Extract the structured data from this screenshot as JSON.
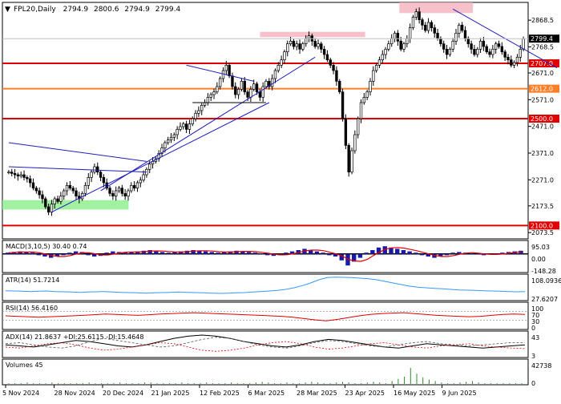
{
  "header": {
    "symbol": "FPL20,",
    "timeframe": "Daily",
    "open": "2794.9",
    "high": "2800.6",
    "low": "2794.9",
    "close": "2799.4"
  },
  "chart_data": {
    "type": "candlestick",
    "y_ticks": [
      "2868.5",
      "2768.5",
      "2671.0",
      "2571.0",
      "2471.0",
      "2371.0",
      "2271.0",
      "2173.5",
      "2073.5"
    ],
    "y_range": [
      2050,
      2935
    ],
    "x_ticks": [
      "5 Nov 2024",
      "28 Nov 2024",
      "20 Dec 2024",
      "21 Jan 2025",
      "12 Feb 2025",
      "6 Mar 2025",
      "28 Mar 2025",
      "23 Apr 2025",
      "16 May 2025",
      "9 Jun 2025"
    ],
    "current_price": "2799.4",
    "levels": [
      {
        "price": 2707.0,
        "label": "2707.0",
        "color": "#e00000"
      },
      {
        "price": 2612.0,
        "label": "2612.0",
        "color": "#ff7f27"
      },
      {
        "price": 2500.0,
        "label": "2500.0",
        "color": "#e00000"
      },
      {
        "price": 2100.0,
        "label": "2100.0",
        "color": "#e00000"
      }
    ],
    "close_series": [
      2300,
      2295,
      2290,
      2285,
      2290,
      2280,
      2275,
      2260,
      2240,
      2230,
      2215,
      2200,
      2170,
      2150,
      2180,
      2200,
      2190,
      2210,
      2230,
      2250,
      2240,
      2230,
      2210,
      2200,
      2220,
      2250,
      2280,
      2300,
      2320,
      2300,
      2280,
      2260,
      2240,
      2220,
      2210,
      2230,
      2240,
      2220,
      2210,
      2230,
      2250,
      2240,
      2260,
      2270,
      2290,
      2310,
      2330,
      2340,
      2350,
      2370,
      2390,
      2410,
      2420,
      2430,
      2440,
      2460,
      2470,
      2480,
      2460,
      2480,
      2500,
      2520,
      2530,
      2550,
      2560,
      2580,
      2590,
      2600,
      2620,
      2650,
      2680,
      2700,
      2660,
      2620,
      2590,
      2610,
      2640,
      2600,
      2580,
      2610,
      2630,
      2600,
      2580,
      2620,
      2640,
      2620,
      2650,
      2680,
      2700,
      2720,
      2750,
      2780,
      2790,
      2770,
      2780,
      2760,
      2780,
      2800,
      2810,
      2790,
      2770,
      2780,
      2760,
      2740,
      2720,
      2700,
      2680,
      2640,
      2600,
      2500,
      2400,
      2300,
      2380,
      2440,
      2500,
      2560,
      2580,
      2600,
      2640,
      2680,
      2700,
      2720,
      2740,
      2760,
      2780,
      2800,
      2820,
      2790,
      2760,
      2780,
      2800,
      2840,
      2880,
      2900,
      2870,
      2850,
      2830,
      2860,
      2840,
      2820,
      2800,
      2780,
      2760,
      2740,
      2760,
      2790,
      2820,
      2850,
      2830,
      2800,
      2780,
      2760,
      2740,
      2760,
      2790,
      2770,
      2750,
      2740,
      2760,
      2780,
      2770,
      2750,
      2730,
      2720,
      2700,
      2710,
      2730,
      2760,
      2799
    ],
    "zones": [
      {
        "name": "upper-resistance-zone",
        "x_from": 0.49,
        "x_to": 0.69,
        "y_from": 2825,
        "y_to": 2805
      },
      {
        "name": "top-resistance-zone",
        "x_from": 0.755,
        "x_to": 0.895,
        "y_from": 2935,
        "y_to": 2895
      },
      {
        "name": "support-zone",
        "x_from": 0.0,
        "x_to": 0.24,
        "y_from": 2195,
        "y_to": 2160
      }
    ],
    "indicators": [
      {
        "name": "macd",
        "label": "MACD(3,10,5) 30.40 0.74",
        "ticks": [
          "95.03",
          "0.00",
          "-148.28"
        ],
        "hist": [
          2,
          3,
          4,
          3,
          2,
          -2,
          -4,
          -6,
          -4,
          -2,
          2,
          4,
          3,
          -2,
          -4,
          -3,
          2,
          4,
          3,
          2,
          3,
          4,
          5,
          6,
          4,
          3,
          2,
          3,
          4,
          5,
          6,
          5,
          4,
          3,
          2,
          3,
          4,
          5,
          4,
          3,
          2,
          1,
          -2,
          -3,
          -2,
          2,
          4,
          6,
          8,
          6,
          4,
          2,
          -2,
          -4,
          -10,
          -18,
          -12,
          -6,
          2,
          6,
          10,
          12,
          10,
          8,
          6,
          4,
          2,
          -2,
          -4,
          -6,
          -4,
          -2,
          2,
          3,
          2,
          1,
          -1,
          -2,
          -1,
          1,
          2,
          3,
          4,
          5
        ]
      },
      {
        "name": "atr",
        "label": "ATR(14) 51.7214",
        "ticks": [
          "108.0936",
          "27.6207"
        ],
        "values": [
          55,
          54,
          53,
          52,
          53,
          54,
          52,
          51,
          50,
          49,
          50,
          51,
          52,
          50,
          49,
          48,
          47,
          46,
          47,
          48,
          49,
          50,
          49,
          48,
          47,
          46,
          45,
          46,
          47,
          48,
          50,
          52,
          54,
          56,
          60,
          66,
          74,
          84,
          96,
          104,
          106,
          105,
          104,
          102,
          100,
          96,
          90,
          84,
          78,
          72,
          68,
          66,
          64,
          62,
          60,
          58,
          57,
          56,
          55,
          54,
          53,
          52,
          51,
          52
        ]
      },
      {
        "name": "rsi",
        "label": "RSI(14) 56.4160",
        "ticks": [
          "100",
          "70",
          "30",
          "0"
        ],
        "values": [
          50,
          48,
          46,
          44,
          46,
          48,
          50,
          52,
          55,
          58,
          56,
          54,
          52,
          55,
          58,
          60,
          62,
          64,
          62,
          60,
          58,
          56,
          54,
          52,
          50,
          48,
          44,
          38,
          32,
          28,
          34,
          42,
          50,
          56,
          60,
          62,
          64,
          60,
          56,
          52,
          50,
          48,
          46,
          48,
          52,
          56,
          58,
          56
        ]
      },
      {
        "name": "adx",
        "label": "ADX(14) 21.8637 +DI:25.6115 -DI:15.4648",
        "ticks": [
          "43",
          "3"
        ],
        "adx": [
          22,
          20,
          18,
          22,
          26,
          30,
          28,
          24,
          20,
          18,
          22,
          28,
          34,
          38,
          40,
          38,
          34,
          28,
          24,
          20,
          18,
          22,
          28,
          32,
          30,
          26,
          22,
          18,
          16,
          20,
          24,
          22,
          20,
          18,
          16,
          18,
          20,
          22
        ],
        "plus_di": [
          24,
          26,
          22,
          18,
          16,
          20,
          28,
          34,
          30,
          26,
          22,
          18,
          20,
          26,
          32,
          36,
          34,
          28,
          22,
          18,
          16,
          20,
          26,
          30,
          28,
          24,
          20,
          18,
          22,
          26,
          28,
          24,
          22,
          20,
          22,
          24,
          26,
          26
        ],
        "minus_di": [
          18,
          16,
          20,
          24,
          26,
          22,
          16,
          12,
          14,
          18,
          22,
          26,
          24,
          18,
          12,
          10,
          12,
          16,
          22,
          26,
          28,
          24,
          18,
          14,
          16,
          20,
          24,
          26,
          22,
          18,
          16,
          20,
          22,
          24,
          20,
          18,
          16,
          15
        ]
      },
      {
        "name": "volumes",
        "label": "Volumes 45",
        "ticks": [
          "42738",
          "0"
        ],
        "values": [
          1,
          1,
          1,
          2,
          1,
          1,
          1,
          2,
          1,
          1,
          1,
          1,
          1,
          2,
          1,
          1,
          1,
          1,
          2,
          1,
          1,
          1,
          2,
          2,
          1,
          1,
          1,
          1,
          2,
          1,
          1,
          1,
          2,
          1,
          1,
          1,
          2,
          1,
          1,
          1,
          2,
          3,
          2,
          1,
          1,
          2,
          1,
          1,
          2,
          3,
          2,
          1,
          1,
          2,
          3,
          2,
          1,
          1,
          2,
          3,
          2,
          1,
          4,
          7,
          10,
          22,
          14,
          9,
          6,
          4,
          2,
          1,
          1,
          2,
          3,
          4,
          2,
          1,
          1,
          1,
          1,
          1,
          1,
          1
        ]
      }
    ]
  }
}
